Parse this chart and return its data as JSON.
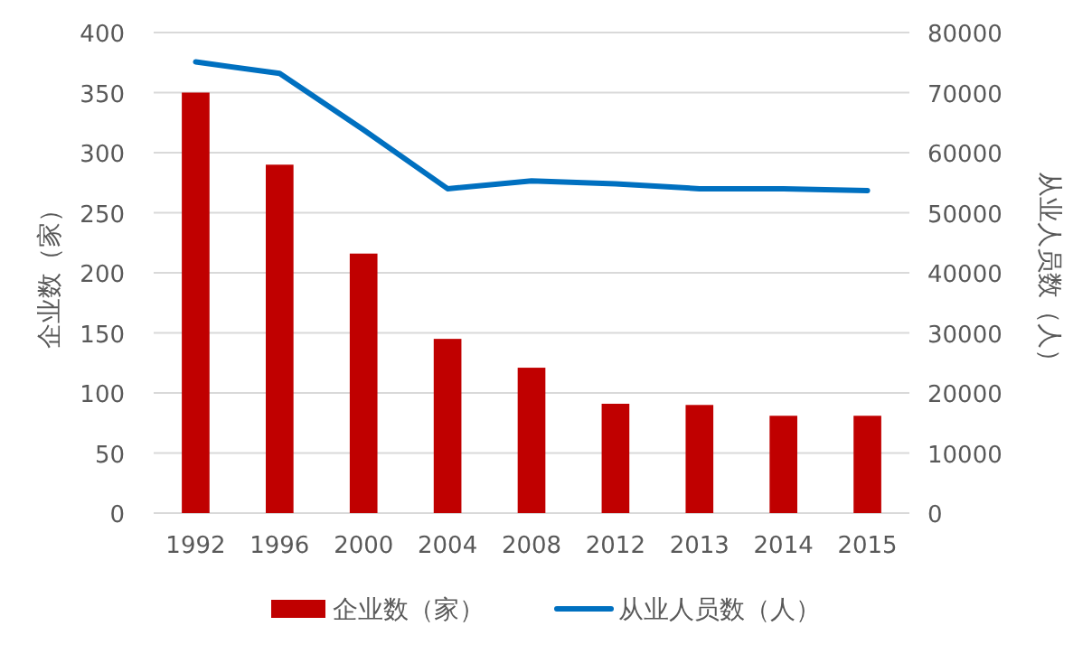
{
  "chart_data": {
    "type": "bar",
    "categories": [
      "1992",
      "1996",
      "2000",
      "2004",
      "2008",
      "2012",
      "2013",
      "2014",
      "2015"
    ],
    "series": [
      {
        "name": "企业数（家）",
        "color": "#c00000",
        "values": [
          350,
          290,
          216,
          145,
          121,
          91,
          90,
          81,
          81
        ]
      },
      {
        "name": "从业人员数（人）",
        "type": "line",
        "axis": "y2",
        "color": "#0070c0",
        "values": [
          75100,
          73200,
          63800,
          54000,
          55300,
          54800,
          54000,
          54000,
          53700
        ]
      }
    ],
    "ylabel": "企业数（家）",
    "y2label": "从业人员数（人）",
    "ylim": [
      0,
      400
    ],
    "yticks": [
      0,
      50,
      100,
      150,
      200,
      250,
      300,
      350,
      400
    ],
    "y2lim": [
      0,
      80000
    ],
    "y2ticks": [
      0,
      10000,
      20000,
      30000,
      40000,
      50000,
      60000,
      70000,
      80000
    ],
    "grid": "y",
    "legend": "bottom"
  }
}
